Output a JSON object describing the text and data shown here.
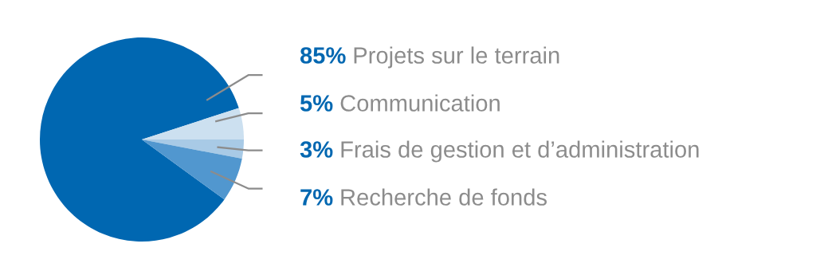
{
  "chart_data": {
    "type": "pie",
    "categories": [
      "Projets sur le terrain",
      "Communication",
      "Frais de gestion et d’administration",
      "Recherche de fonds"
    ],
    "values": [
      85,
      5,
      3,
      7
    ],
    "value_labels": [
      "85%",
      "5%",
      "3%",
      "7%"
    ],
    "colors": [
      "#0067b1",
      "#cce0f0",
      "#a8cae6",
      "#5197cf"
    ],
    "legend": false
  }
}
